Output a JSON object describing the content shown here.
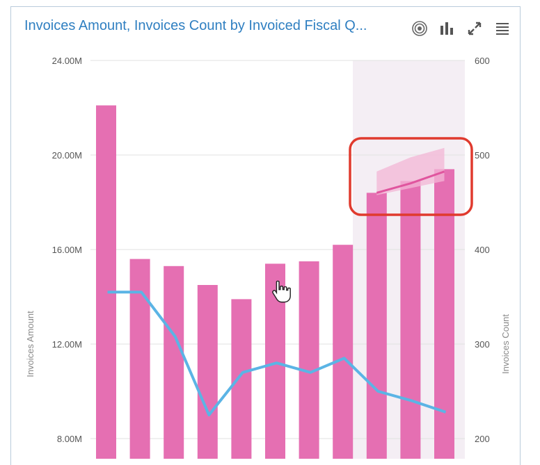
{
  "title": "Invoices Amount, Invoices Count by Invoiced Fiscal Q...",
  "toolbar": {
    "icons": [
      "target-icon",
      "bar-chart-icon",
      "expand-icon",
      "menu-icon"
    ]
  },
  "colors": {
    "bar": "#e56fb2",
    "line": "#5bb4e5",
    "highlight_band": "#f4eef4",
    "annotation_box": "#e03a2e",
    "title": "#2f7fc1"
  },
  "chart_data": {
    "type": "bar",
    "title": "Invoices Amount, Invoices Count by Invoiced Fiscal Q...",
    "ylabel": "Invoices Amount",
    "y2label": "Invoices Count",
    "ylim": [
      7.0,
      24.0
    ],
    "y2lim": [
      175,
      600
    ],
    "y_ticks": [
      "24.00M",
      "20.00M",
      "16.00M",
      "12.00M",
      "8.00M"
    ],
    "y_tick_values": [
      24,
      20,
      16,
      12,
      8
    ],
    "y2_ticks": [
      "600",
      "500",
      "400",
      "300",
      "200"
    ],
    "y2_tick_values": [
      600,
      500,
      400,
      300,
      200
    ],
    "grid": true,
    "series": [
      {
        "name": "Invoices Amount",
        "type": "bar",
        "unit": "M",
        "values": [
          22.1,
          15.6,
          15.3,
          14.5,
          13.9,
          15.4,
          15.5,
          16.2,
          18.4,
          18.9,
          19.4
        ]
      },
      {
        "name": "Invoices Count",
        "type": "line",
        "axis": "right",
        "values": [
          355,
          355,
          308,
          225,
          270,
          280,
          270,
          285,
          250,
          240,
          228
        ]
      }
    ],
    "highlight_start_index": 8,
    "forecast_band": {
      "start_index": 8,
      "upper": [
        19.3,
        19.9,
        20.3
      ],
      "lower": [
        18.3,
        18.6,
        18.9
      ]
    },
    "forecast_line_amount": [
      18.4,
      18.8,
      19.3
    ]
  }
}
